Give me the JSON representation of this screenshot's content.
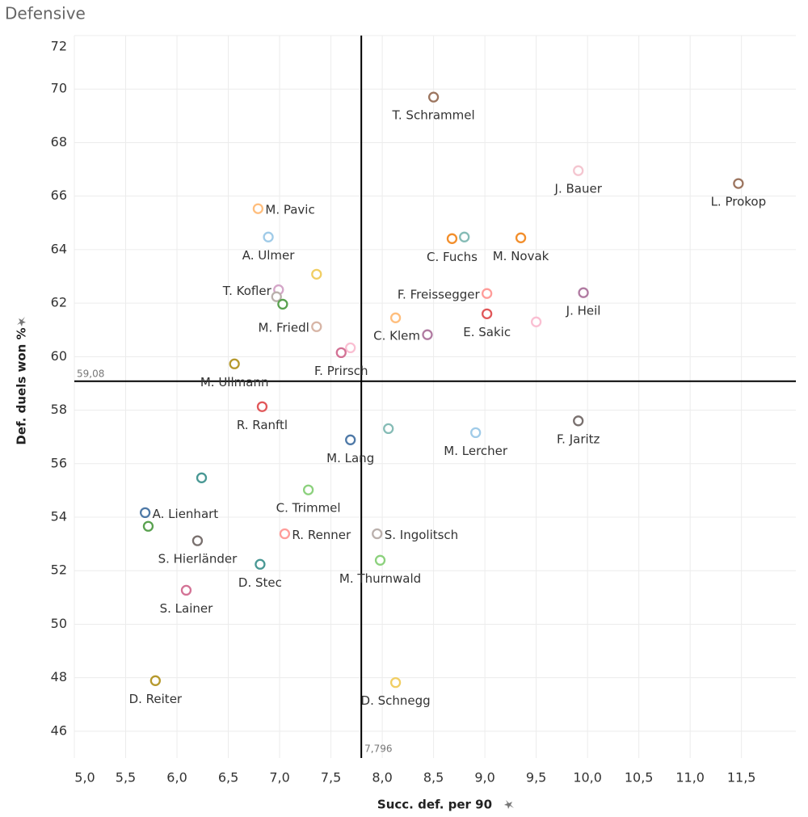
{
  "chart_data": {
    "type": "scatter",
    "title": "Defensive",
    "x_label": "Succ. def. per 90",
    "y_label": "Def. duels won %",
    "xlim": [
      5.0,
      12.03
    ],
    "ylim": [
      45,
      72
    ],
    "xticks": [
      {
        "value": 5.0,
        "label": "5,0"
      },
      {
        "value": 5.5,
        "label": "5,5"
      },
      {
        "value": 6.0,
        "label": "6,0"
      },
      {
        "value": 6.5,
        "label": "6,5"
      },
      {
        "value": 7.0,
        "label": "7,0"
      },
      {
        "value": 7.5,
        "label": "7,5"
      },
      {
        "value": 8.0,
        "label": "8,0"
      },
      {
        "value": 8.5,
        "label": "8,5"
      },
      {
        "value": 9.0,
        "label": "9,0"
      },
      {
        "value": 9.5,
        "label": "9,5"
      },
      {
        "value": 10.0,
        "label": "10,0"
      },
      {
        "value": 10.5,
        "label": "10,5"
      },
      {
        "value": 11.0,
        "label": "11,0"
      },
      {
        "value": 11.5,
        "label": "11,5"
      }
    ],
    "yticks": [
      46,
      48,
      50,
      52,
      54,
      56,
      58,
      60,
      62,
      64,
      66,
      68,
      70,
      72
    ],
    "grid": true,
    "x_reference": {
      "value": 7.796,
      "label": "7,796"
    },
    "y_reference": {
      "value": 59.08,
      "label": "59,08"
    },
    "labels": [
      "T. Schrammel",
      "J. Bauer",
      "L. Prokop",
      "M. Pavic",
      "A. Ulmer",
      "C. Fuchs",
      null,
      "M. Novak",
      null,
      "T. Kofler",
      null,
      null,
      "F. Freissegger",
      "J. Heil",
      "E. Sakic",
      null,
      "M. Friedl",
      null,
      "C. Klem",
      null,
      "F. Prirsch",
      "M. Ullmann",
      "R. Ranftl",
      null,
      "M. Lercher",
      "F. Jaritz",
      "M. Lang",
      null,
      "C. Trimmel",
      "A. Lienhart",
      null,
      "S. Hierländer",
      "R. Renner",
      "S. Ingolitsch",
      "D. Stec",
      "M. Thurnwald",
      "S. Lainer",
      "D. Reiter",
      "D. Schnegg"
    ],
    "x": [
      8.5,
      9.91,
      11.47,
      6.79,
      6.89,
      8.68,
      8.8,
      9.35,
      7.36,
      6.99,
      6.97,
      7.03,
      9.02,
      9.96,
      9.02,
      9.5,
      7.36,
      8.13,
      8.44,
      7.69,
      7.6,
      6.56,
      6.83,
      8.06,
      8.91,
      9.91,
      7.69,
      6.24,
      7.28,
      5.69,
      5.72,
      6.2,
      7.05,
      7.95,
      6.81,
      7.98,
      6.09,
      5.79,
      8.13
    ],
    "y": [
      69.7,
      66.95,
      66.47,
      65.53,
      64.47,
      64.41,
      64.47,
      64.44,
      63.08,
      62.5,
      62.24,
      61.96,
      62.36,
      62.39,
      61.6,
      61.3,
      61.12,
      61.45,
      60.82,
      60.33,
      60.15,
      59.73,
      58.13,
      57.31,
      57.16,
      57.6,
      56.89,
      55.47,
      55.02,
      54.17,
      53.66,
      53.12,
      53.38,
      53.38,
      52.24,
      52.39,
      51.27,
      47.89,
      47.82
    ],
    "colors": [
      "#9c755f",
      "#f4c6d0",
      "#9c755f",
      "#ffbe7d",
      "#a0cbe8",
      "#f28e2b",
      "#86bcb6",
      "#f28e2b",
      "#f1ce63",
      "#d4a6c8",
      "#bab0ac",
      "#59a14f",
      "#ff9d9a",
      "#b07aa1",
      "#e15759",
      "#fabfd2",
      "#d7b5a6",
      "#ffbe7d",
      "#b07aa1",
      "#fabfd2",
      "#d37295",
      "#b6992d",
      "#e15759",
      "#86bcb6",
      "#a0cbe8",
      "#79706e",
      "#4e79a7",
      "#499894",
      "#8cd17d",
      "#4e79a7",
      "#59a14f",
      "#79706e",
      "#ff9d9a",
      "#bab0ac",
      "#499894",
      "#8cd17d",
      "#d37295",
      "#b6992d",
      "#f1ce63"
    ]
  }
}
